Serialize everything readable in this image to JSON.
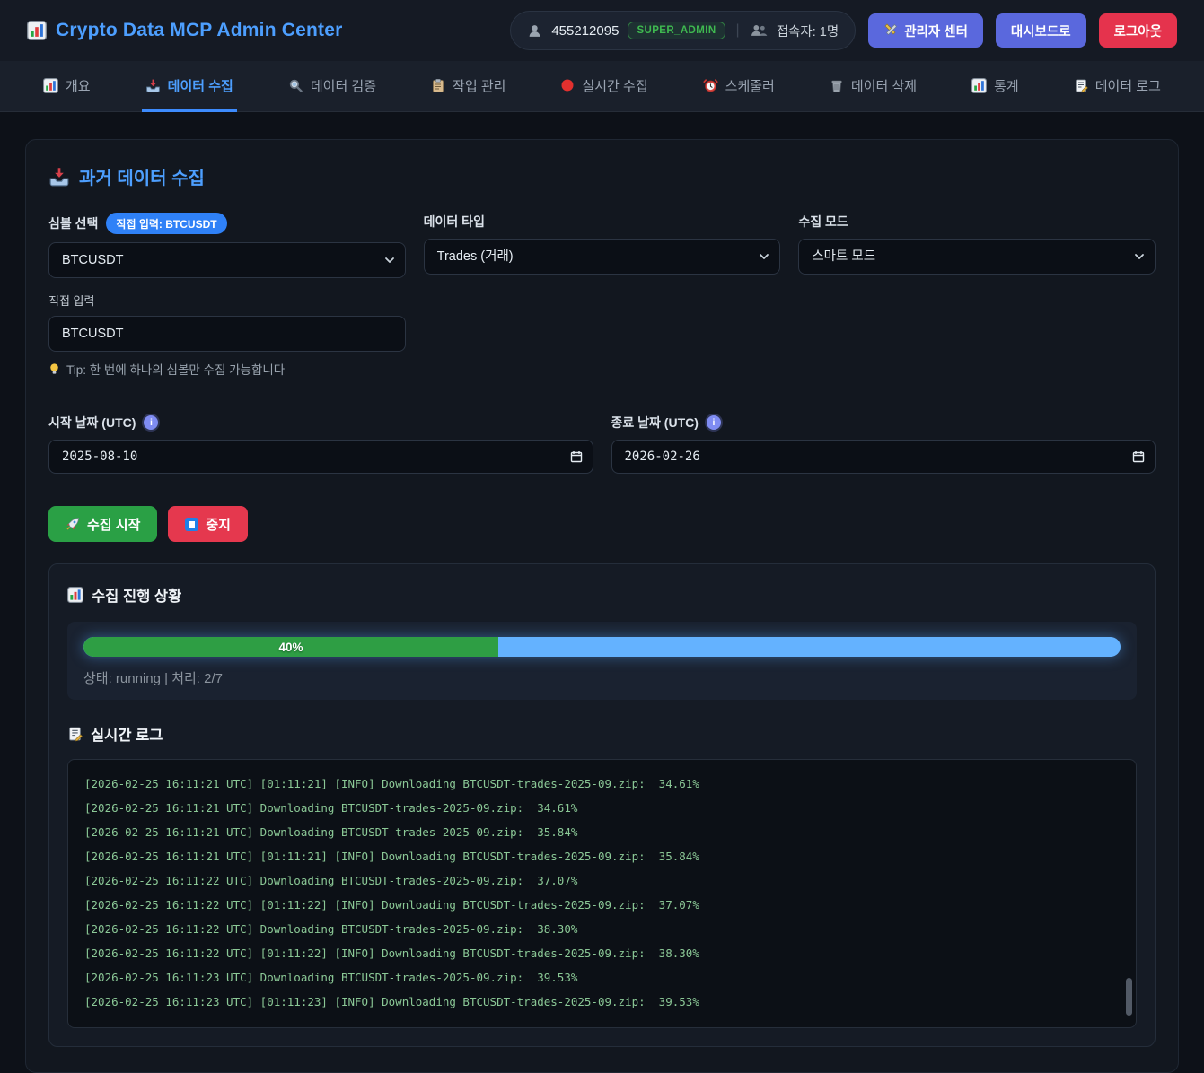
{
  "header": {
    "title": "Crypto Data MCP Admin Center",
    "user_id": "455212095",
    "role_badge": "SUPER_ADMIN",
    "online_label": "접속자: 1명",
    "admin_center_button": "관리자 센터",
    "dashboard_button": "대시보드로",
    "logout_button": "로그아웃"
  },
  "nav": {
    "tabs": [
      {
        "key": "overview",
        "label": "개요",
        "icon": "chart",
        "active": false
      },
      {
        "key": "data-collect",
        "label": "데이터 수집",
        "icon": "inbox",
        "active": true
      },
      {
        "key": "data-validate",
        "label": "데이터 검증",
        "icon": "magnifier",
        "active": false
      },
      {
        "key": "job-manage",
        "label": "작업 관리",
        "icon": "clipboard",
        "active": false
      },
      {
        "key": "realtime",
        "label": "실시간 수집",
        "icon": "redcircle",
        "active": false
      },
      {
        "key": "scheduler",
        "label": "스케줄러",
        "icon": "alarm",
        "active": false
      },
      {
        "key": "data-delete",
        "label": "데이터 삭제",
        "icon": "trash",
        "active": false
      },
      {
        "key": "stats",
        "label": "통계",
        "icon": "chart",
        "active": false
      },
      {
        "key": "data-log",
        "label": "데이터 로그",
        "icon": "memo",
        "active": false
      }
    ]
  },
  "collect": {
    "section_title": "과거 데이터 수집",
    "symbol_label": "심볼 선택",
    "symbol_badge": "직접 입력: BTCUSDT",
    "symbol_value": "BTCUSDT",
    "data_type_label": "데이터 타입",
    "data_type_value": "Trades (거래)",
    "mode_label": "수집 모드",
    "mode_value": "스마트 모드",
    "direct_input_label": "직접 입력",
    "direct_input_value": "BTCUSDT",
    "tip": "Tip: 한 번에 하나의 심볼만 수집 가능합니다",
    "start_date_label": "시작 날짜 (UTC)",
    "start_date_value": "2025-08-10",
    "end_date_label": "종료 날짜 (UTC)",
    "end_date_value": "2026-02-26",
    "start_button": "수집 시작",
    "stop_button": "중지"
  },
  "progress": {
    "section_title": "수집 진행 상황",
    "percent_label": "40%",
    "percent_value": 40,
    "status_text": "상태: running | 처리: 2/7"
  },
  "logs": {
    "section_title": "실시간 로그",
    "lines": [
      "[2026-02-25 16:11:21 UTC] [01:11:21] [INFO] Downloading BTCUSDT-trades-2025-09.zip:  34.61%",
      "[2026-02-25 16:11:21 UTC] Downloading BTCUSDT-trades-2025-09.zip:  34.61%",
      "[2026-02-25 16:11:21 UTC] Downloading BTCUSDT-trades-2025-09.zip:  35.84%",
      "[2026-02-25 16:11:21 UTC] [01:11:21] [INFO] Downloading BTCUSDT-trades-2025-09.zip:  35.84%",
      "[2026-02-25 16:11:22 UTC] Downloading BTCUSDT-trades-2025-09.zip:  37.07%",
      "[2026-02-25 16:11:22 UTC] [01:11:22] [INFO] Downloading BTCUSDT-trades-2025-09.zip:  37.07%",
      "[2026-02-25 16:11:22 UTC] Downloading BTCUSDT-trades-2025-09.zip:  38.30%",
      "[2026-02-25 16:11:22 UTC] [01:11:22] [INFO] Downloading BTCUSDT-trades-2025-09.zip:  38.30%",
      "[2026-02-25 16:11:23 UTC] Downloading BTCUSDT-trades-2025-09.zip:  39.53%",
      "[2026-02-25 16:11:23 UTC] [01:11:23] [INFO] Downloading BTCUSDT-trades-2025-09.zip:  39.53%"
    ]
  },
  "colors": {
    "accent_blue": "#4d9fff",
    "badge_blue": "#2f81f7",
    "progress_green": "#2e9e44",
    "progress_blue": "#64b2ff",
    "button_green": "#2aa045",
    "button_red": "#e5384e",
    "button_indigo": "#5a68dd",
    "role_green": "#3fb950",
    "log_text": "#8bc896"
  }
}
